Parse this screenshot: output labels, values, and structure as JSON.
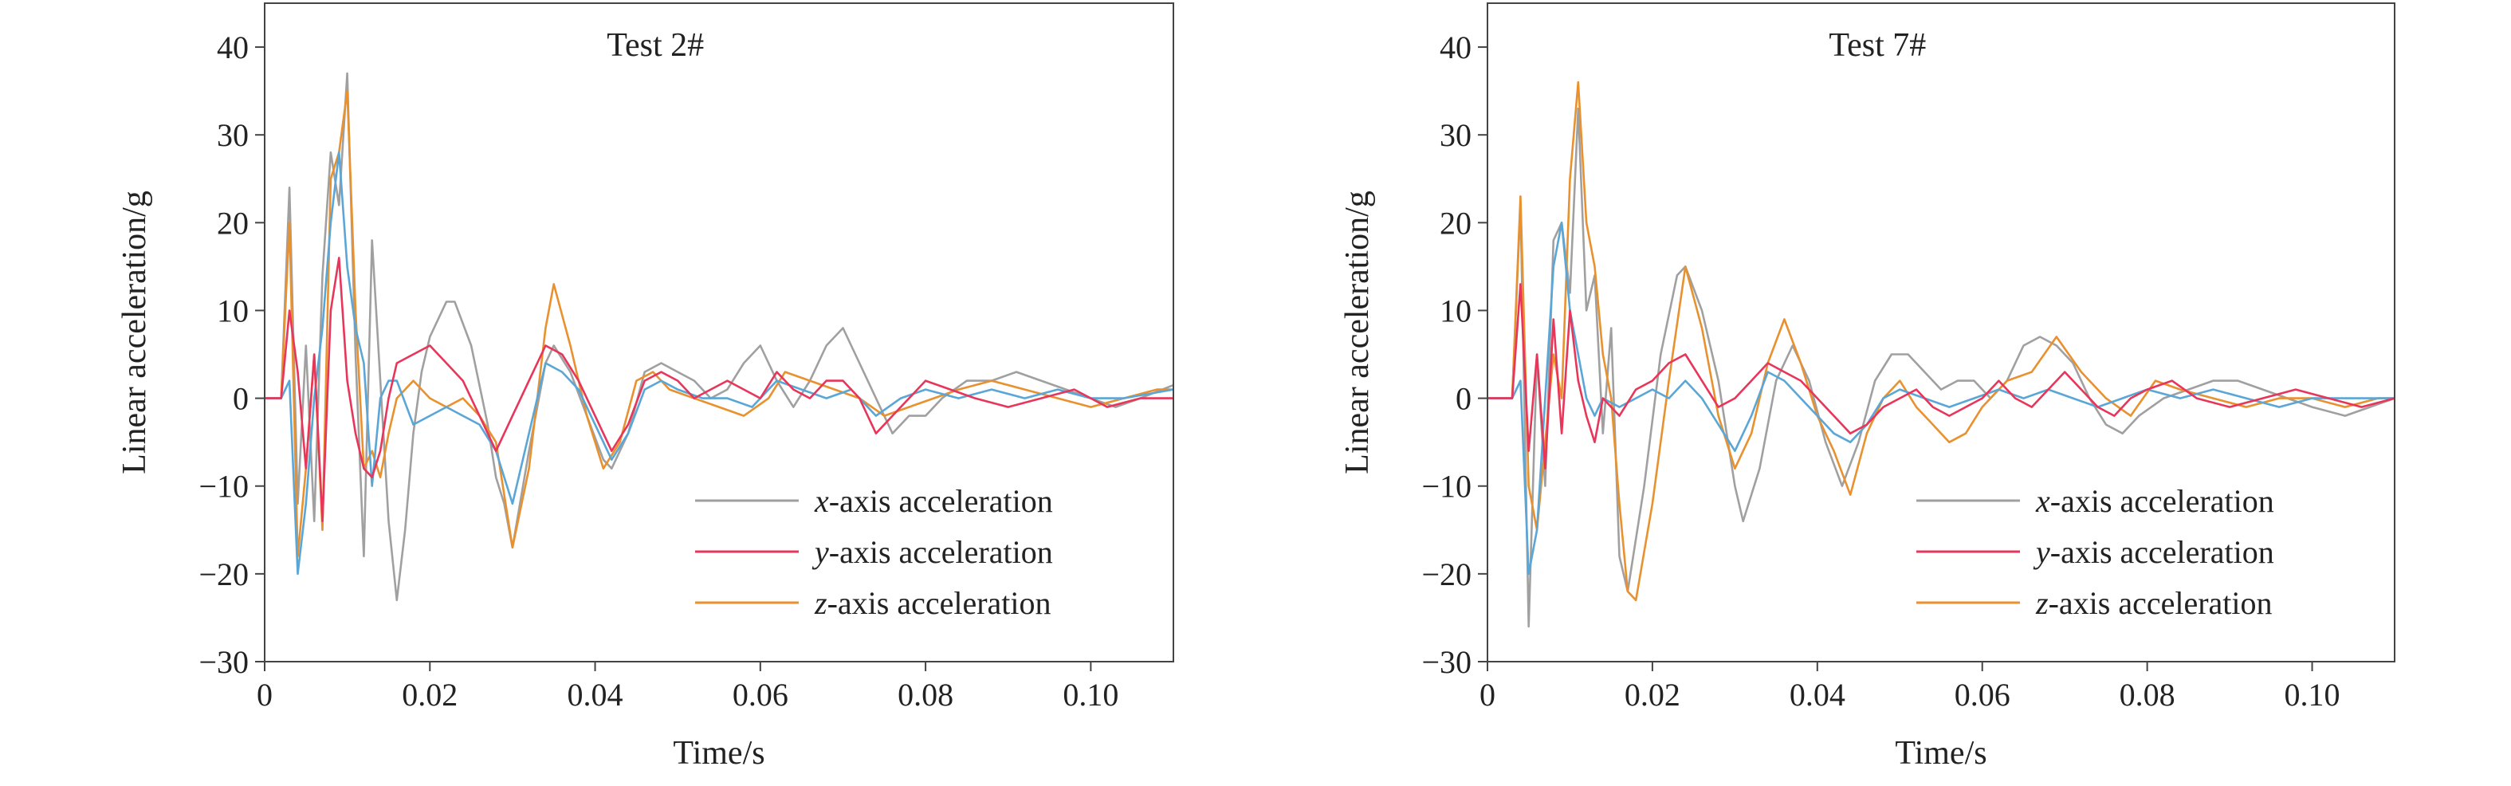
{
  "chart_data": [
    {
      "type": "line",
      "title": "Test 2#",
      "xlabel": "Time/s",
      "ylabel": "Linear acceleration/g",
      "xlim": [
        0,
        0.11
      ],
      "ylim": [
        -30,
        45
      ],
      "xticks": [
        0,
        0.02,
        0.04,
        0.06,
        0.08,
        0.1
      ],
      "xtick_labels": [
        "0",
        "0.02",
        "0.04",
        "0.06",
        "0.08",
        "0.10"
      ],
      "yticks": [
        -30,
        -20,
        -10,
        0,
        10,
        20,
        30,
        40
      ],
      "ytick_labels": [
        "−30",
        "−20",
        "−10",
        "0",
        "10",
        "20",
        "30",
        "40"
      ],
      "legend_position": "bottom-right",
      "series": [
        {
          "name": "x-axis acceleration",
          "color": "#a0a0a0",
          "x": [
            0,
            0.002,
            0.003,
            0.004,
            0.005,
            0.006,
            0.007,
            0.008,
            0.009,
            0.01,
            0.011,
            0.012,
            0.013,
            0.014,
            0.015,
            0.016,
            0.017,
            0.018,
            0.019,
            0.02,
            0.022,
            0.023,
            0.025,
            0.027,
            0.028,
            0.029,
            0.03,
            0.032,
            0.034,
            0.035,
            0.037,
            0.039,
            0.041,
            0.042,
            0.044,
            0.046,
            0.048,
            0.05,
            0.052,
            0.054,
            0.056,
            0.058,
            0.06,
            0.062,
            0.064,
            0.066,
            0.068,
            0.07,
            0.072,
            0.074,
            0.076,
            0.078,
            0.08,
            0.082,
            0.085,
            0.088,
            0.091,
            0.094,
            0.097,
            0.1,
            0.103,
            0.106,
            0.11
          ],
          "y": [
            0,
            0,
            24,
            -12,
            6,
            -14,
            14,
            28,
            22,
            37,
            5,
            -18,
            18,
            2,
            -14,
            -23,
            -15,
            -4,
            3,
            7,
            11,
            11,
            6,
            -3,
            -9,
            -12,
            -17,
            -6,
            4,
            6,
            3,
            -2,
            -7,
            -8,
            -4,
            3,
            4,
            3,
            2,
            0,
            1,
            4,
            6,
            2,
            -1,
            2,
            6,
            8,
            4,
            0,
            -4,
            -2,
            -2,
            0,
            2,
            2,
            3,
            2,
            1,
            0,
            -1,
            0,
            1.5
          ]
        },
        {
          "name": "y-axis acceleration",
          "color": "#e8355a",
          "x": [
            0,
            0.002,
            0.003,
            0.004,
            0.005,
            0.006,
            0.007,
            0.008,
            0.009,
            0.01,
            0.011,
            0.012,
            0.013,
            0.014,
            0.015,
            0.016,
            0.018,
            0.02,
            0.022,
            0.024,
            0.026,
            0.028,
            0.03,
            0.032,
            0.034,
            0.036,
            0.038,
            0.04,
            0.042,
            0.044,
            0.046,
            0.048,
            0.05,
            0.052,
            0.054,
            0.056,
            0.058,
            0.06,
            0.062,
            0.064,
            0.066,
            0.068,
            0.07,
            0.072,
            0.074,
            0.076,
            0.078,
            0.08,
            0.083,
            0.086,
            0.09,
            0.094,
            0.098,
            0.102,
            0.106,
            0.11
          ],
          "y": [
            0,
            0,
            10,
            3,
            -8,
            5,
            -14,
            10,
            16,
            2,
            -4,
            -8,
            -9,
            -6,
            0,
            4,
            5,
            6,
            4,
            2,
            -2,
            -6,
            -2,
            2,
            6,
            5,
            2,
            -2,
            -6,
            -3,
            2,
            3,
            2,
            0,
            1,
            2,
            1,
            0,
            3,
            1,
            0,
            2,
            2,
            0,
            -4,
            -2,
            0,
            2,
            1,
            0,
            -1,
            0,
            1,
            -1,
            0,
            0
          ]
        },
        {
          "name": "z-axis acceleration",
          "color": "#e8912e",
          "x": [
            0,
            0.002,
            0.003,
            0.004,
            0.005,
            0.006,
            0.007,
            0.008,
            0.009,
            0.01,
            0.011,
            0.012,
            0.013,
            0.014,
            0.015,
            0.016,
            0.017,
            0.018,
            0.02,
            0.022,
            0.024,
            0.026,
            0.028,
            0.03,
            0.032,
            0.034,
            0.035,
            0.037,
            0.039,
            0.041,
            0.043,
            0.045,
            0.047,
            0.049,
            0.052,
            0.055,
            0.058,
            0.061,
            0.063,
            0.066,
            0.069,
            0.072,
            0.075,
            0.078,
            0.081,
            0.084,
            0.088,
            0.092,
            0.096,
            0.1,
            0.104,
            0.108,
            0.11
          ],
          "y": [
            0,
            0,
            20,
            -18,
            -8,
            5,
            -15,
            25,
            28,
            35,
            10,
            -8,
            -6,
            -9,
            -4,
            0,
            1,
            2,
            0,
            -1,
            0,
            -2,
            -5,
            -17,
            -8,
            8,
            13,
            6,
            -2,
            -8,
            -5,
            2,
            3,
            1,
            0,
            -1,
            -2,
            0,
            3,
            2,
            1,
            0,
            -2,
            -1,
            0,
            1,
            2,
            1,
            0,
            -1,
            0,
            1,
            1
          ]
        },
        {
          "name": "",
          "color": "#5aa6d6",
          "x": [
            0,
            0.002,
            0.003,
            0.004,
            0.005,
            0.006,
            0.007,
            0.008,
            0.009,
            0.01,
            0.011,
            0.012,
            0.013,
            0.014,
            0.015,
            0.016,
            0.018,
            0.02,
            0.022,
            0.024,
            0.026,
            0.028,
            0.03,
            0.032,
            0.034,
            0.036,
            0.038,
            0.04,
            0.042,
            0.044,
            0.046,
            0.048,
            0.05,
            0.053,
            0.056,
            0.059,
            0.062,
            0.065,
            0.068,
            0.071,
            0.074,
            0.077,
            0.08,
            0.084,
            0.088,
            0.092,
            0.096,
            0.1,
            0.104,
            0.11
          ],
          "y": [
            0,
            0,
            2,
            -20,
            -12,
            0,
            8,
            20,
            28,
            15,
            8,
            4,
            -10,
            0,
            2,
            2,
            -3,
            -2,
            -1,
            -2,
            -3,
            -6,
            -12,
            -4,
            4,
            3,
            1,
            -3,
            -7,
            -4,
            1,
            2,
            1,
            0,
            0,
            -1,
            2,
            1,
            0,
            1,
            -2,
            0,
            1,
            0,
            1,
            0,
            1,
            0,
            0,
            1
          ]
        }
      ]
    },
    {
      "type": "line",
      "title": "Test 7#",
      "xlabel": "Time/s",
      "ylabel": "Linear acceleration/g",
      "xlim": [
        0,
        0.11
      ],
      "ylim": [
        -30,
        45
      ],
      "xticks": [
        0,
        0.02,
        0.04,
        0.06,
        0.08,
        0.1
      ],
      "xtick_labels": [
        "0",
        "0.02",
        "0.04",
        "0.06",
        "0.08",
        "0.10"
      ],
      "yticks": [
        -30,
        -20,
        -10,
        0,
        10,
        20,
        30,
        40
      ],
      "ytick_labels": [
        "−30",
        "−20",
        "−10",
        "0",
        "10",
        "20",
        "30",
        "40"
      ],
      "legend_position": "bottom-right",
      "series": [
        {
          "name": "x-axis acceleration",
          "color": "#a0a0a0",
          "x": [
            0,
            0.003,
            0.004,
            0.005,
            0.006,
            0.007,
            0.008,
            0.009,
            0.01,
            0.011,
            0.012,
            0.013,
            0.014,
            0.015,
            0.016,
            0.017,
            0.019,
            0.021,
            0.023,
            0.024,
            0.026,
            0.028,
            0.03,
            0.031,
            0.033,
            0.035,
            0.037,
            0.039,
            0.041,
            0.043,
            0.045,
            0.047,
            0.049,
            0.051,
            0.053,
            0.055,
            0.057,
            0.059,
            0.061,
            0.063,
            0.065,
            0.067,
            0.069,
            0.071,
            0.073,
            0.075,
            0.077,
            0.079,
            0.082,
            0.085,
            0.088,
            0.091,
            0.094,
            0.097,
            0.1,
            0.104,
            0.107,
            0.11
          ],
          "y": [
            0,
            0,
            22,
            -26,
            5,
            -10,
            18,
            20,
            12,
            33,
            10,
            14,
            -4,
            8,
            -18,
            -22,
            -10,
            5,
            14,
            15,
            10,
            2,
            -10,
            -14,
            -8,
            2,
            6,
            2,
            -5,
            -10,
            -5,
            2,
            5,
            5,
            3,
            1,
            2,
            2,
            0,
            2,
            6,
            7,
            6,
            4,
            0,
            -3,
            -4,
            -2,
            0,
            1,
            2,
            2,
            1,
            0,
            -1,
            -2,
            -1,
            0
          ]
        },
        {
          "name": "y-axis acceleration",
          "color": "#e8355a",
          "x": [
            0,
            0.003,
            0.004,
            0.005,
            0.006,
            0.007,
            0.008,
            0.009,
            0.01,
            0.011,
            0.012,
            0.013,
            0.014,
            0.016,
            0.018,
            0.02,
            0.022,
            0.024,
            0.026,
            0.028,
            0.03,
            0.032,
            0.034,
            0.036,
            0.038,
            0.04,
            0.042,
            0.044,
            0.046,
            0.048,
            0.05,
            0.052,
            0.054,
            0.056,
            0.058,
            0.06,
            0.062,
            0.064,
            0.066,
            0.068,
            0.07,
            0.072,
            0.074,
            0.076,
            0.078,
            0.08,
            0.083,
            0.086,
            0.09,
            0.094,
            0.098,
            0.102,
            0.106,
            0.11
          ],
          "y": [
            0,
            0,
            13,
            -6,
            5,
            -8,
            9,
            -4,
            10,
            2,
            -2,
            -5,
            0,
            -2,
            1,
            2,
            4,
            5,
            2,
            -1,
            0,
            2,
            4,
            3,
            2,
            0,
            -2,
            -4,
            -3,
            -1,
            0,
            1,
            -1,
            -2,
            -1,
            0,
            2,
            0,
            -1,
            1,
            3,
            1,
            -1,
            -2,
            0,
            1,
            2,
            0,
            -1,
            0,
            1,
            0,
            -1,
            0
          ]
        },
        {
          "name": "z-axis acceleration",
          "color": "#e8912e",
          "x": [
            0,
            0.003,
            0.004,
            0.005,
            0.006,
            0.007,
            0.008,
            0.009,
            0.01,
            0.011,
            0.012,
            0.013,
            0.014,
            0.015,
            0.016,
            0.017,
            0.018,
            0.02,
            0.022,
            0.024,
            0.026,
            0.028,
            0.03,
            0.032,
            0.034,
            0.036,
            0.038,
            0.04,
            0.042,
            0.044,
            0.046,
            0.048,
            0.05,
            0.052,
            0.054,
            0.056,
            0.058,
            0.06,
            0.063,
            0.066,
            0.069,
            0.072,
            0.075,
            0.078,
            0.081,
            0.084,
            0.088,
            0.092,
            0.096,
            0.1,
            0.104,
            0.108,
            0.11
          ],
          "y": [
            0,
            0,
            23,
            -10,
            -15,
            -5,
            5,
            0,
            25,
            36,
            20,
            15,
            5,
            0,
            -12,
            -22,
            -23,
            -12,
            2,
            15,
            8,
            -2,
            -8,
            -4,
            4,
            9,
            4,
            -2,
            -6,
            -11,
            -4,
            0,
            2,
            -1,
            -3,
            -5,
            -4,
            -1,
            2,
            3,
            7,
            3,
            0,
            -2,
            2,
            1,
            0,
            -1,
            0,
            0,
            -1,
            0,
            0
          ]
        },
        {
          "name": "",
          "color": "#5aa6d6",
          "x": [
            0,
            0.003,
            0.004,
            0.005,
            0.006,
            0.007,
            0.008,
            0.009,
            0.01,
            0.011,
            0.012,
            0.013,
            0.014,
            0.016,
            0.018,
            0.02,
            0.022,
            0.024,
            0.026,
            0.028,
            0.03,
            0.032,
            0.034,
            0.036,
            0.038,
            0.04,
            0.042,
            0.044,
            0.046,
            0.048,
            0.05,
            0.053,
            0.056,
            0.059,
            0.062,
            0.065,
            0.068,
            0.071,
            0.074,
            0.077,
            0.08,
            0.084,
            0.088,
            0.092,
            0.096,
            0.1,
            0.104,
            0.11
          ],
          "y": [
            0,
            0,
            2,
            -20,
            -15,
            0,
            15,
            20,
            10,
            5,
            0,
            -2,
            0,
            -1,
            0,
            1,
            0,
            2,
            0,
            -3,
            -6,
            -2,
            3,
            2,
            0,
            -2,
            -4,
            -5,
            -3,
            0,
            1,
            0,
            -1,
            0,
            1,
            0,
            1,
            0,
            -1,
            0,
            1,
            0,
            1,
            0,
            -1,
            0,
            0,
            0
          ]
        }
      ]
    }
  ]
}
